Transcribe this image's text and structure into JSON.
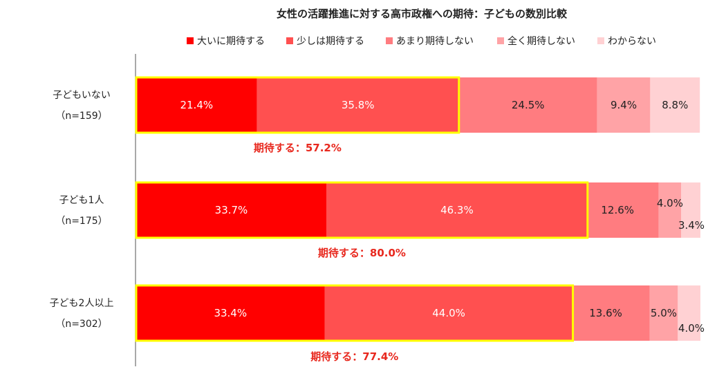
{
  "chart_data": {
    "type": "bar",
    "orientation": "horizontal",
    "stacked": true,
    "percent_stacked": true,
    "title": "女性の活躍推進に対する高市政権への期待：子どもの数別比較",
    "legend_position": "top",
    "grid": false,
    "xlim": [
      0,
      100
    ],
    "categories": [
      {
        "name": "子どもいない",
        "n": "（n=159）"
      },
      {
        "name": "子ども1人",
        "n": "（n=175）"
      },
      {
        "name": "子ども2人以上",
        "n": "（n=302）"
      }
    ],
    "series": [
      {
        "name": "大いに期待する",
        "color": "#ff0000",
        "values": [
          21.4,
          33.7,
          33.4
        ],
        "labels": [
          "21.4%",
          "33.7%",
          "33.4%"
        ]
      },
      {
        "name": "少しは期待する",
        "color": "#ff5050",
        "values": [
          35.8,
          46.3,
          44.0
        ],
        "labels": [
          "35.8%",
          "46.3%",
          "44.0%"
        ]
      },
      {
        "name": "あまり期待しない",
        "color": "#ff7c80",
        "values": [
          24.5,
          12.6,
          13.6
        ],
        "labels": [
          "24.5%",
          "12.6%",
          "13.6%"
        ]
      },
      {
        "name": "全く期待しない",
        "color": "#ffa3a6",
        "values": [
          9.4,
          4.0,
          5.0
        ],
        "labels": [
          "9.4%",
          "4.0%",
          "5.0%"
        ]
      },
      {
        "name": "わからない",
        "color": "#ffd1d3",
        "values": [
          8.8,
          3.4,
          4.0
        ],
        "labels": [
          "8.8%",
          "3.4%",
          "4.0%"
        ]
      }
    ],
    "annotations": [
      {
        "category": "子どもいない",
        "text": "期待する：57.2%",
        "value": 57.2
      },
      {
        "category": "子ども1人",
        "text": "期待する：80.0%",
        "value": 80.0
      },
      {
        "category": "子ども2人以上",
        "text": "期待する：77.4%",
        "value": 77.4
      }
    ],
    "highlight_color": "#ffff00",
    "value_label_colors": {
      "on_dark": "#ffffff",
      "on_light": "#222222"
    }
  }
}
